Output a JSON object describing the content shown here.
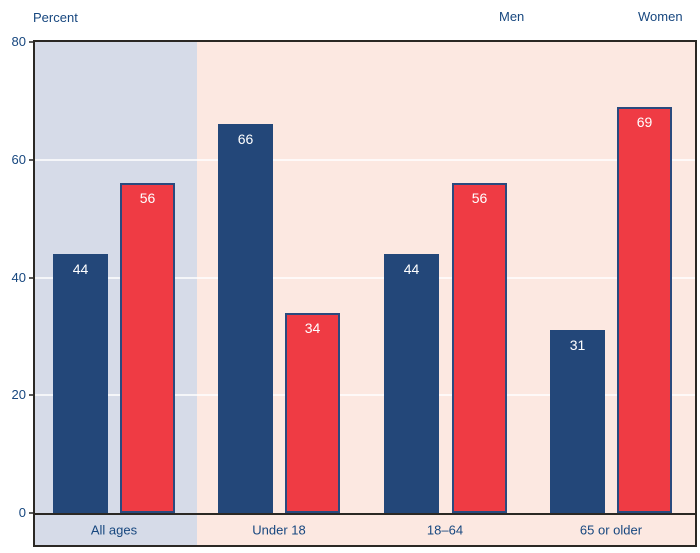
{
  "chart_data": {
    "type": "bar",
    "title": "",
    "ylabel": "Percent",
    "categories": [
      "All ages",
      "Under 18",
      "18–64",
      "65 or older"
    ],
    "series": [
      {
        "name": "Men",
        "values": [
          44,
          66,
          44,
          31
        ],
        "color": "#234779",
        "border_color": "#234779"
      },
      {
        "name": "Women",
        "values": [
          56,
          34,
          56,
          69
        ],
        "color": "#EF3B44",
        "border_color": "#2A4A7E"
      }
    ],
    "ylim": [
      0,
      80
    ],
    "yticks": [
      0,
      20,
      40,
      60,
      80
    ],
    "value_labels_shown": true,
    "legend_position": "top-right",
    "grid": "horizontal-white-lines",
    "plot_backgrounds": [
      {
        "applies_to": "All ages",
        "color": "#D6DBE8"
      },
      {
        "applies_to": "Under 18, 18–64, 65 or older",
        "color": "#FCE8E1"
      }
    ]
  },
  "colors": {
    "axis_text": "#17477F",
    "frame_border": "#2B2824",
    "gridline": "rgba(255,255,255,0.75)",
    "value_label": "#FFFFFF",
    "background": "#FFFFFF"
  }
}
